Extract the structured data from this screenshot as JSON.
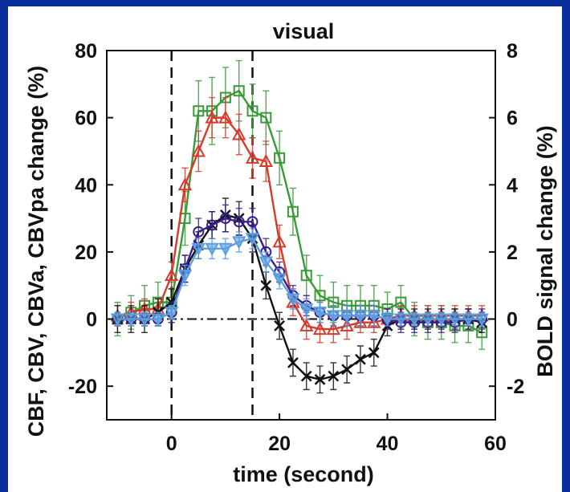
{
  "chart_data": {
    "type": "line",
    "title": "visual",
    "xlabel": "time (second)",
    "ylabel": "CBF, CBV, CBVa, CBVpa change (%)",
    "y2label": "BOLD signal change (%)",
    "xlim": [
      -12,
      60
    ],
    "ylim": [
      -30,
      80
    ],
    "y2lim": [
      -3,
      8
    ],
    "x_ticks": [
      "0",
      "20",
      "40",
      "60"
    ],
    "y_ticks": [
      "80",
      "60",
      "40",
      "20",
      "0",
      "-20"
    ],
    "y2_ticks": [
      "8",
      "6",
      "4",
      "2",
      "0",
      "-2"
    ],
    "stimulus_lines": [
      0,
      15
    ],
    "baseline": 0,
    "grid": false,
    "series": [
      {
        "color": "#3a9a3a",
        "marker": "square",
        "axis": "left",
        "x": [
          -10,
          -7.5,
          -5,
          -2.5,
          0,
          2.5,
          5,
          7.5,
          10,
          12.5,
          15,
          17.5,
          20,
          22.5,
          25,
          27.5,
          30,
          32.5,
          35,
          37.5,
          40,
          42.5,
          45,
          47.5,
          50,
          52.5,
          55,
          57.5
        ],
        "y": [
          0,
          2,
          4,
          5,
          5,
          30,
          62,
          62,
          66,
          68,
          62,
          60,
          48,
          32,
          13,
          7,
          5,
          4,
          4,
          4,
          3,
          5,
          0,
          -1,
          -1,
          -2,
          -2,
          -4
        ],
        "err": [
          5,
          5,
          6,
          6,
          6,
          8,
          9,
          10,
          9,
          9,
          8,
          8,
          8,
          7,
          6,
          6,
          6,
          6,
          6,
          6,
          5,
          5,
          5,
          5,
          5,
          5,
          5,
          5
        ]
      },
      {
        "color": "#d63a2a",
        "marker": "triangle",
        "axis": "left",
        "x": [
          -10,
          -7.5,
          -5,
          -2.5,
          0,
          2.5,
          5,
          7.5,
          10,
          12.5,
          15,
          17.5,
          20,
          22.5,
          25,
          27.5,
          30,
          32.5,
          35,
          37.5,
          40,
          42.5,
          45,
          47.5,
          50,
          52.5,
          55,
          57.5
        ],
        "y": [
          1,
          2,
          3,
          3,
          13,
          40,
          50,
          60,
          60,
          55,
          48,
          47,
          23,
          5,
          -2,
          -3,
          -3,
          -2,
          -1,
          -1,
          0,
          1,
          1,
          1,
          1,
          1,
          1,
          1
        ],
        "err": [
          3,
          3,
          3,
          3,
          4,
          5,
          6,
          6,
          6,
          6,
          6,
          6,
          5,
          4,
          4,
          4,
          4,
          4,
          3,
          3,
          3,
          3,
          3,
          3,
          3,
          3,
          3,
          3
        ]
      },
      {
        "color": "#111111",
        "marker": "x",
        "axis": "right",
        "x": [
          -10,
          -7.5,
          -5,
          -2.5,
          0,
          2.5,
          5,
          7.5,
          10,
          12.5,
          15,
          17.5,
          20,
          22.5,
          25,
          27.5,
          30,
          32.5,
          35,
          37.5,
          40,
          42.5,
          45,
          47.5,
          50,
          52.5,
          55,
          57.5
        ],
        "y": [
          0,
          0,
          0,
          0.2,
          0.5,
          1.5,
          2.2,
          2.8,
          3.1,
          3.0,
          2.4,
          1.0,
          -0.2,
          -1.3,
          -1.7,
          -1.8,
          -1.7,
          -1.5,
          -1.2,
          -1.0,
          -0.2,
          0,
          0,
          0,
          0,
          0,
          0,
          -0.1
        ],
        "err": [
          0.4,
          0.4,
          0.4,
          0.4,
          0.4,
          0.4,
          0.4,
          0.4,
          0.5,
          0.5,
          0.4,
          0.4,
          0.4,
          0.4,
          0.4,
          0.4,
          0.4,
          0.4,
          0.4,
          0.4,
          0.3,
          0.3,
          0.3,
          0.3,
          0.3,
          0.3,
          0.3,
          0.3
        ]
      },
      {
        "color": "#3a1f8c",
        "marker": "circle",
        "axis": "left",
        "x": [
          -10,
          -7.5,
          -5,
          -2.5,
          0,
          2.5,
          5,
          7.5,
          10,
          12.5,
          15,
          17.5,
          20,
          22.5,
          25,
          27.5,
          30,
          32.5,
          35,
          37.5,
          40,
          42.5,
          45,
          47.5,
          50,
          52.5,
          55,
          57.5
        ],
        "y": [
          0,
          0,
          0,
          0,
          2,
          15,
          26,
          28,
          30,
          29,
          29,
          20,
          14,
          7,
          4,
          2,
          1,
          1,
          1,
          1,
          0,
          -1,
          -1,
          -1,
          -1,
          -1,
          0,
          0
        ],
        "err": [
          2,
          2,
          2,
          2,
          3,
          4,
          4,
          4,
          4,
          4,
          4,
          4,
          3,
          3,
          3,
          3,
          3,
          3,
          3,
          3,
          3,
          3,
          3,
          3,
          3,
          3,
          3,
          3
        ]
      },
      {
        "color": "#5a9ee0",
        "marker": "triangle-down",
        "axis": "left",
        "x": [
          -10,
          -7.5,
          -5,
          -2.5,
          0,
          2.5,
          5,
          7.5,
          10,
          12.5,
          15,
          17.5,
          20,
          22.5,
          25,
          27.5,
          30,
          32.5,
          35,
          37.5,
          40,
          42.5,
          45,
          47.5,
          50,
          52.5,
          55,
          57.5
        ],
        "y": [
          0,
          0,
          0,
          0,
          2,
          13,
          21,
          21,
          21,
          23,
          24,
          17,
          12,
          6,
          3,
          2,
          1,
          1,
          1,
          1,
          0,
          0,
          0,
          0,
          0,
          0,
          0,
          0
        ],
        "err": [
          2,
          2,
          2,
          2,
          2,
          3,
          3,
          3,
          3,
          3,
          3,
          3,
          3,
          3,
          3,
          3,
          3,
          3,
          3,
          3,
          2,
          2,
          2,
          2,
          2,
          2,
          2,
          2
        ]
      }
    ]
  }
}
